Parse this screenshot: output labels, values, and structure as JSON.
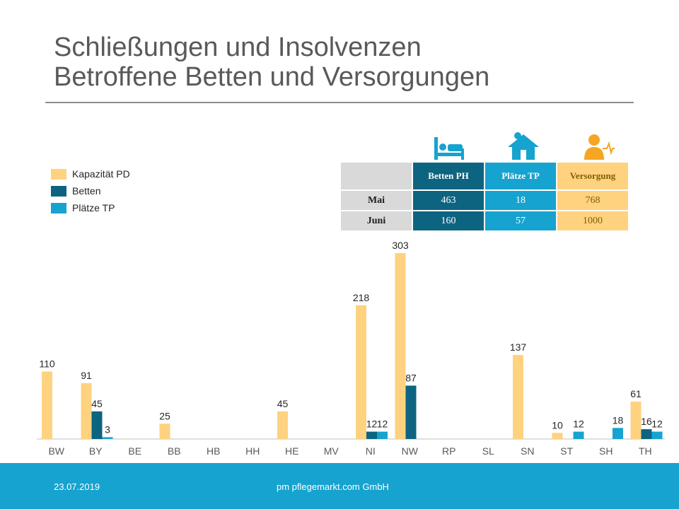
{
  "title": {
    "line1": "Schließungen und Insolvenzen",
    "line2": "Betroffene Betten und Versorgungen"
  },
  "legend": [
    {
      "label": "Kapazität PD",
      "color": "#ffd27f"
    },
    {
      "label": "Betten",
      "color": "#0d6480"
    },
    {
      "label": "Plätze TP",
      "color": "#16a3cf"
    }
  ],
  "table": {
    "headers": [
      "Betten PH",
      "Plätze TP",
      "Versorgung"
    ],
    "icons": [
      "bed-icon",
      "house-icon",
      "person-care-icon"
    ],
    "rows": [
      {
        "label": "Mai",
        "values": [
          "463",
          "18",
          "768"
        ]
      },
      {
        "label": "Juni",
        "values": [
          "160",
          "57",
          "1000"
        ]
      }
    ]
  },
  "chart_data": {
    "type": "bar",
    "categories": [
      "BW",
      "BY",
      "BE",
      "BB",
      "HB",
      "HH",
      "HE",
      "MV",
      "NI",
      "NW",
      "RP",
      "SL",
      "SN",
      "ST",
      "SH",
      "TH"
    ],
    "series": [
      {
        "name": "Kapazität PD",
        "color": "#ffd27f",
        "values": [
          110,
          91,
          null,
          25,
          null,
          null,
          45,
          null,
          218,
          303,
          null,
          null,
          137,
          10,
          null,
          61
        ]
      },
      {
        "name": "Betten",
        "color": "#0d6480",
        "values": [
          null,
          45,
          null,
          null,
          null,
          null,
          null,
          null,
          12,
          87,
          null,
          null,
          null,
          null,
          null,
          16
        ]
      },
      {
        "name": "Plätze TP",
        "color": "#16a3cf",
        "values": [
          null,
          3,
          null,
          null,
          null,
          null,
          null,
          null,
          12,
          null,
          null,
          null,
          null,
          12,
          18,
          12
        ]
      }
    ],
    "ylim": [
      0,
      310
    ],
    "grid": false,
    "legend_position": "top-left"
  },
  "footer": {
    "date": "23.07.2019",
    "company": "pm pflegemarkt.com GmbH"
  }
}
